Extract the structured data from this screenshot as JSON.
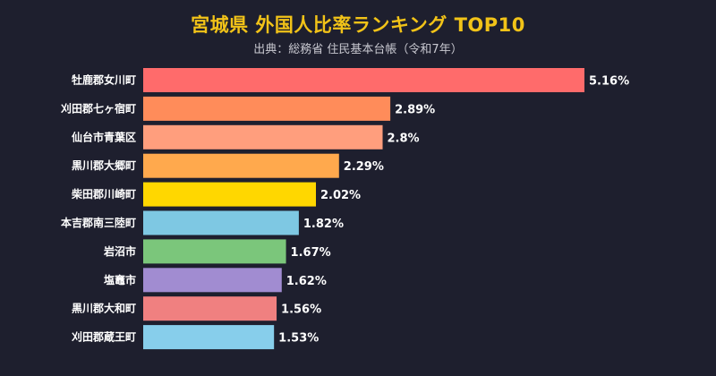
{
  "chart_data": {
    "type": "bar",
    "orientation": "horizontal",
    "title": "宮城県 外国人比率ランキング TOP10",
    "subtitle": "出典：総務省 住民基本台帳（令和7年）",
    "categories": [
      "牡鹿郡女川町",
      "刈田郡七ヶ宿町",
      "仙台市青葉区",
      "黒川郡大郷町",
      "柴田郡川崎町",
      "本吉郡南三陸町",
      "岩沼市",
      "塩竈市",
      "黒川郡大和町",
      "刈田郡蔵王町"
    ],
    "values": [
      5.16,
      2.89,
      2.8,
      2.29,
      2.02,
      1.82,
      1.67,
      1.62,
      1.56,
      1.53
    ],
    "value_labels": [
      "5.16%",
      "2.89%",
      "2.8%",
      "2.29%",
      "2.02%",
      "1.82%",
      "1.67%",
      "1.62%",
      "1.56%",
      "1.53%"
    ],
    "colors": [
      "#ff6b6b",
      "#ff8c5a",
      "#ff9e7d",
      "#ffa94d",
      "#ffd700",
      "#7ec8e3",
      "#7bc67b",
      "#a18cd1",
      "#f08080",
      "#87ceeb"
    ],
    "xlim": [
      0,
      5.16
    ],
    "grid": false,
    "legend": "none"
  }
}
